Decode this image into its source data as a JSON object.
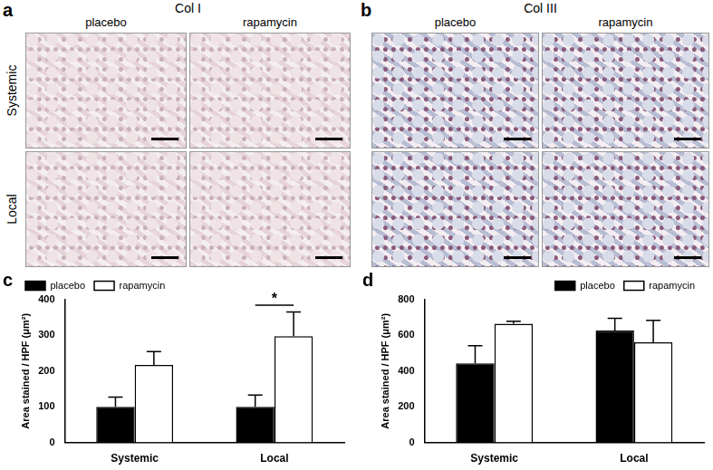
{
  "image_panels": [
    {
      "panel_label": "a",
      "title": "Col I",
      "columns": [
        "placebo",
        "rapamycin"
      ],
      "rows": [
        "Systemic",
        "Local"
      ]
    },
    {
      "panel_label": "b",
      "title": "Col III",
      "columns": [
        "placebo",
        "rapamycin"
      ]
    }
  ],
  "chart_data": [
    {
      "panel_label": "c",
      "type": "bar",
      "categories": [
        "Systemic",
        "Local"
      ],
      "series": [
        {
          "name": "placebo",
          "color": "#000000",
          "values": [
            100,
            100
          ],
          "errors": [
            27,
            33
          ]
        },
        {
          "name": "rapamycin",
          "color": "#ffffff",
          "values": [
            217,
            298
          ],
          "errors": [
            38,
            68
          ]
        }
      ],
      "y_label": "Area stained / HPF (μm²)",
      "ylim": [
        0,
        400
      ],
      "yticks": [
        0,
        100,
        200,
        300,
        400
      ],
      "grid": false,
      "legend": "upper left",
      "annotations": [
        {
          "text": "*",
          "category": "Local",
          "y": 385
        }
      ]
    },
    {
      "panel_label": "d",
      "type": "bar",
      "categories": [
        "Systemic",
        "Local"
      ],
      "series": [
        {
          "name": "placebo",
          "color": "#000000",
          "values": [
            443,
            628
          ],
          "errors": [
            100,
            68
          ]
        },
        {
          "name": "rapamycin",
          "color": "#ffffff",
          "values": [
            665,
            562
          ],
          "errors": [
            15,
            122
          ]
        }
      ],
      "y_label": "Area stained / HPF (μm²)",
      "ylim": [
        0,
        800
      ],
      "yticks": [
        0,
        200,
        400,
        600,
        800
      ],
      "grid": false,
      "legend": "upper right"
    }
  ]
}
